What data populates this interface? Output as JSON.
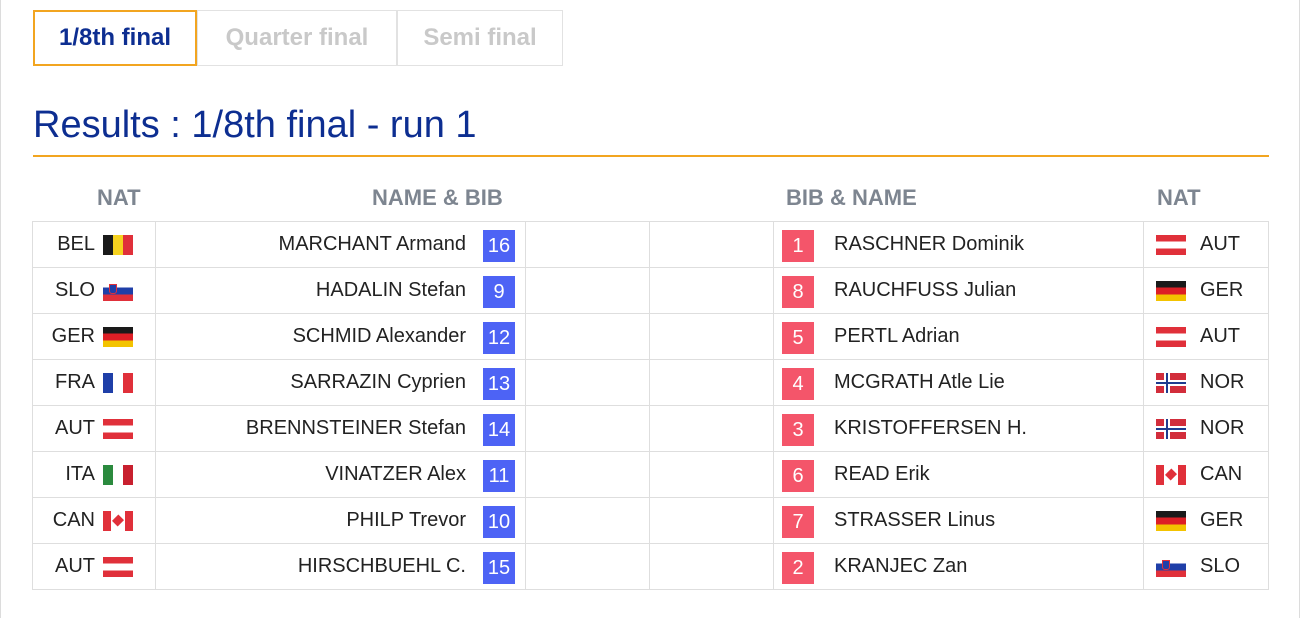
{
  "tabs": [
    {
      "label": "1/8th final",
      "active": true
    },
    {
      "label": "Quarter final",
      "active": false
    },
    {
      "label": "Semi final",
      "active": false
    }
  ],
  "title": "Results : 1/8th final - run 1",
  "headers": {
    "nat_left": "NAT",
    "name_bib": "NAME & BIB",
    "bib_name": "BIB & NAME",
    "nat_right": "NAT"
  },
  "colors": {
    "accent": "#f2a520",
    "title": "#0d2e91",
    "bib_left": "#4d63f5",
    "bib_right": "#f4556a",
    "header": "#7d8590"
  },
  "rows": [
    {
      "left": {
        "nat": "BEL",
        "flag": "bel",
        "name": "MARCHANT Armand",
        "bib": "16"
      },
      "right": {
        "bib": "1",
        "name": "RASCHNER Dominik",
        "flag": "aut",
        "nat": "AUT"
      }
    },
    {
      "left": {
        "nat": "SLO",
        "flag": "slo",
        "name": "HADALIN Stefan",
        "bib": "9"
      },
      "right": {
        "bib": "8",
        "name": "RAUCHFUSS Julian",
        "flag": "ger",
        "nat": "GER"
      }
    },
    {
      "left": {
        "nat": "GER",
        "flag": "ger",
        "name": "SCHMID Alexander",
        "bib": "12"
      },
      "right": {
        "bib": "5",
        "name": "PERTL Adrian",
        "flag": "aut",
        "nat": "AUT"
      }
    },
    {
      "left": {
        "nat": "FRA",
        "flag": "fra",
        "name": "SARRAZIN Cyprien",
        "bib": "13"
      },
      "right": {
        "bib": "4",
        "name": "MCGRATH Atle Lie",
        "flag": "nor",
        "nat": "NOR"
      }
    },
    {
      "left": {
        "nat": "AUT",
        "flag": "aut",
        "name": "BRENNSTEINER Stefan",
        "bib": "14"
      },
      "right": {
        "bib": "3",
        "name": "KRISTOFFERSEN H.",
        "flag": "nor",
        "nat": "NOR"
      }
    },
    {
      "left": {
        "nat": "ITA",
        "flag": "ita",
        "name": "VINATZER Alex",
        "bib": "11"
      },
      "right": {
        "bib": "6",
        "name": "READ Erik",
        "flag": "can",
        "nat": "CAN"
      }
    },
    {
      "left": {
        "nat": "CAN",
        "flag": "can",
        "name": "PHILP Trevor",
        "bib": "10"
      },
      "right": {
        "bib": "7",
        "name": "STRASSER Linus",
        "flag": "ger",
        "nat": "GER"
      }
    },
    {
      "left": {
        "nat": "AUT",
        "flag": "aut",
        "name": "HIRSCHBUEHL C.",
        "bib": "15"
      },
      "right": {
        "bib": "2",
        "name": "KRANJEC Zan",
        "flag": "slo",
        "nat": "SLO"
      }
    }
  ]
}
